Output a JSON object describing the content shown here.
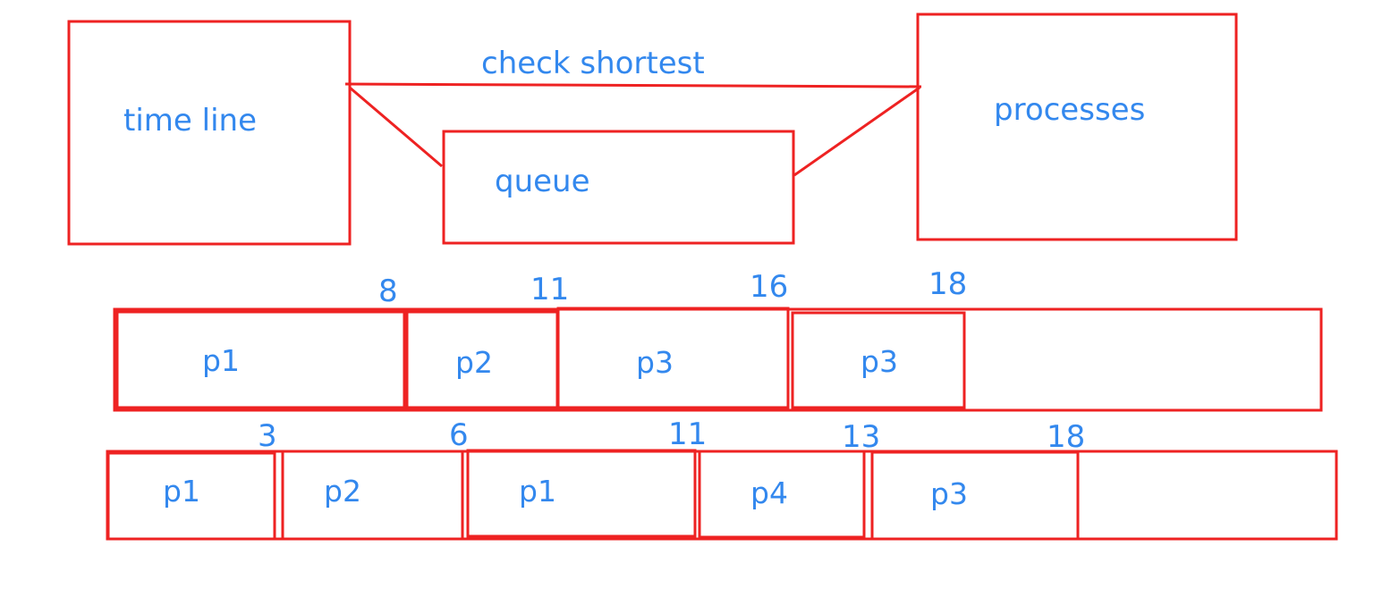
{
  "colors": {
    "stroke": "#ee2222",
    "text": "#3388ee",
    "background": "#ffffff"
  },
  "diagram": {
    "nodes": {
      "timeline": "time line",
      "queue": "queue",
      "processes": "processes"
    },
    "edge_label": "check shortest"
  },
  "gantt_top": {
    "segments": [
      "p1",
      "p2",
      "p3",
      "p3"
    ],
    "times": [
      "8",
      "11",
      "16",
      "18"
    ]
  },
  "gantt_bottom": {
    "segments": [
      "p1",
      "p2",
      "p1",
      "p4",
      "p3"
    ],
    "times": [
      "3",
      "6",
      "11",
      "13",
      "18"
    ]
  }
}
